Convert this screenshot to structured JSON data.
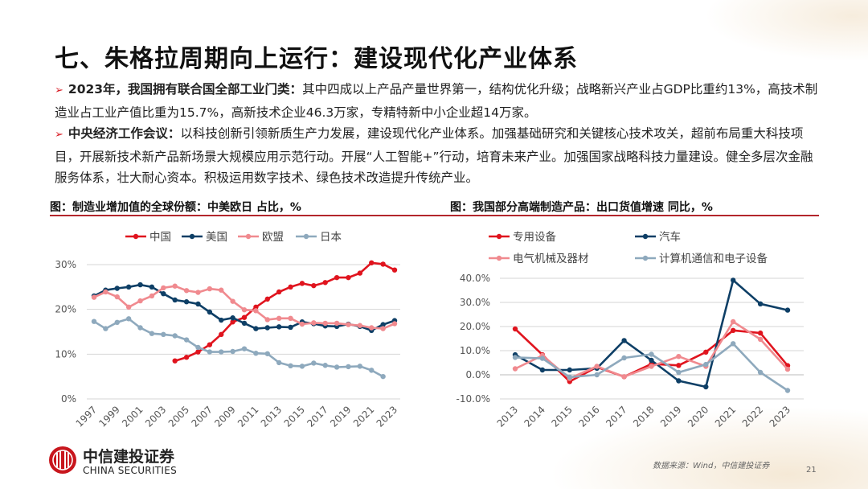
{
  "title": "七、朱格拉周期向上运行：建设现代化产业体系",
  "bullets": [
    {
      "icon": "arrow-right-icon",
      "bold": "2023年，我国拥有联合国全部工业门类：",
      "text": "其中四成以上产品产量世界第一，结构优化升级；战略新兴产业占GDP比重约13%，高技术制造业占工业产值比重为15.7%，高新技术企业46.3万家，专精特新中小企业超14万家。"
    },
    {
      "icon": "arrow-right-icon",
      "bold": "中央经济工作会议：",
      "text": "以科技创新引领新质生产力发展，建设现代化产业体系。加强基础研究和关键核心技术攻关，超前布局重大科技项目，开展新技术新产品新场景大规模应用示范行动。开展“人工智能+”行动，培育未来产业。加强国家战略科技力量建设。健全多层次金融服务体系，壮大耐心资本。积极运用数字技术、绿色技术改造提升传统产业。"
    }
  ],
  "accent_color": "#b3262c",
  "chart_data": [
    {
      "type": "line",
      "title": "图：制造业增加值的全球份额：中美欧日 占比，%",
      "x": [
        1997,
        1998,
        1999,
        2000,
        2001,
        2002,
        2003,
        2004,
        2005,
        2006,
        2007,
        2008,
        2009,
        2010,
        2011,
        2012,
        2013,
        2014,
        2015,
        2016,
        2017,
        2018,
        2019,
        2020,
        2021,
        2022,
        2023
      ],
      "xtick_labels": [
        "1997",
        "1999",
        "2001",
        "2003",
        "2005",
        "2007",
        "2009",
        "2011",
        "2013",
        "2015",
        "2017",
        "2019",
        "2021",
        "2023"
      ],
      "ytick_labels": [
        "0%",
        "10%",
        "20%",
        "30%"
      ],
      "ylim": [
        0,
        30
      ],
      "grid": true,
      "legend": "top",
      "series": [
        {
          "name": "中国",
          "color": "#e0141e",
          "values": [
            null,
            null,
            null,
            null,
            null,
            null,
            null,
            8.5,
            9.3,
            10.5,
            12.1,
            14.4,
            17.2,
            18.2,
            20.5,
            22.3,
            23.9,
            25.0,
            25.8,
            25.3,
            26.0,
            27.1,
            27.1,
            28.1,
            30.4,
            30.1,
            28.8
          ]
        },
        {
          "name": "美国",
          "color": "#0e3f66",
          "values": [
            23.0,
            24.3,
            24.7,
            25.0,
            25.5,
            25.0,
            23.5,
            22.1,
            21.7,
            21.2,
            19.4,
            17.6,
            18.1,
            16.9,
            15.7,
            15.9,
            16.1,
            16.0,
            17.2,
            16.8,
            16.3,
            16.2,
            16.7,
            16.2,
            15.3,
            16.6,
            17.5
          ]
        },
        {
          "name": "欧盟",
          "color": "#f08a8f",
          "values": [
            22.7,
            23.9,
            22.8,
            20.5,
            21.9,
            23.0,
            24.8,
            25.2,
            24.2,
            23.8,
            24.6,
            24.3,
            21.8,
            19.9,
            19.7,
            17.7,
            18.0,
            18.0,
            16.7,
            17.0,
            16.9,
            16.9,
            16.6,
            16.4,
            15.9,
            15.7,
            16.8
          ]
        },
        {
          "name": "日本",
          "color": "#8ea9bd",
          "values": [
            17.3,
            15.7,
            17.1,
            17.9,
            15.9,
            14.6,
            14.4,
            14.1,
            13.2,
            11.5,
            10.5,
            10.5,
            10.6,
            11.2,
            10.2,
            10.1,
            8.1,
            7.4,
            7.3,
            8.0,
            7.5,
            7.1,
            7.2,
            7.3,
            6.4,
            5.0,
            null
          ]
        }
      ]
    },
    {
      "type": "line",
      "title": "图：我国部分高端制造产品：出口货值增速 同比，%",
      "x": [
        2013,
        2014,
        2015,
        2016,
        2017,
        2018,
        2019,
        2020,
        2021,
        2022,
        2023
      ],
      "xtick_labels": [
        "2013",
        "2014",
        "2015",
        "2016",
        "2017",
        "2018",
        "2019",
        "2020",
        "2021",
        "2022",
        "2023"
      ],
      "ytick_labels": [
        "-10.0%",
        "0.0%",
        "10.0%",
        "20.0%",
        "30.0%",
        "40.0%"
      ],
      "ylim": [
        -10,
        40
      ],
      "grid": true,
      "legend": "top",
      "series": [
        {
          "name": "专用设备",
          "color": "#e0141e",
          "values": [
            19.0,
            8.3,
            -2.8,
            3.2,
            -0.8,
            4.5,
            3.9,
            9.4,
            18.4,
            17.3,
            3.8
          ]
        },
        {
          "name": "汽车",
          "color": "#0e3f66",
          "values": [
            8.3,
            2.0,
            2.0,
            2.7,
            14.2,
            6.0,
            -2.5,
            -5.0,
            39.2,
            29.4,
            26.8
          ]
        },
        {
          "name": "电气机械及器材",
          "color": "#f08a8f",
          "values": [
            2.5,
            8.0,
            -1.5,
            3.5,
            -0.8,
            3.5,
            7.6,
            3.5,
            22.0,
            14.7,
            2.3
          ]
        },
        {
          "name": "计算机通信和电子设备",
          "color": "#8ea9bd",
          "values": [
            7.2,
            6.8,
            -1.0,
            0.0,
            7.0,
            8.5,
            1.0,
            4.3,
            12.9,
            1.0,
            -6.5
          ]
        }
      ]
    }
  ],
  "footer": {
    "logo_cn": "中信建投证券",
    "logo_en": "CHINA SECURITIES",
    "source": "数据来源：Wind，中信建投证券",
    "page_number": "21"
  }
}
